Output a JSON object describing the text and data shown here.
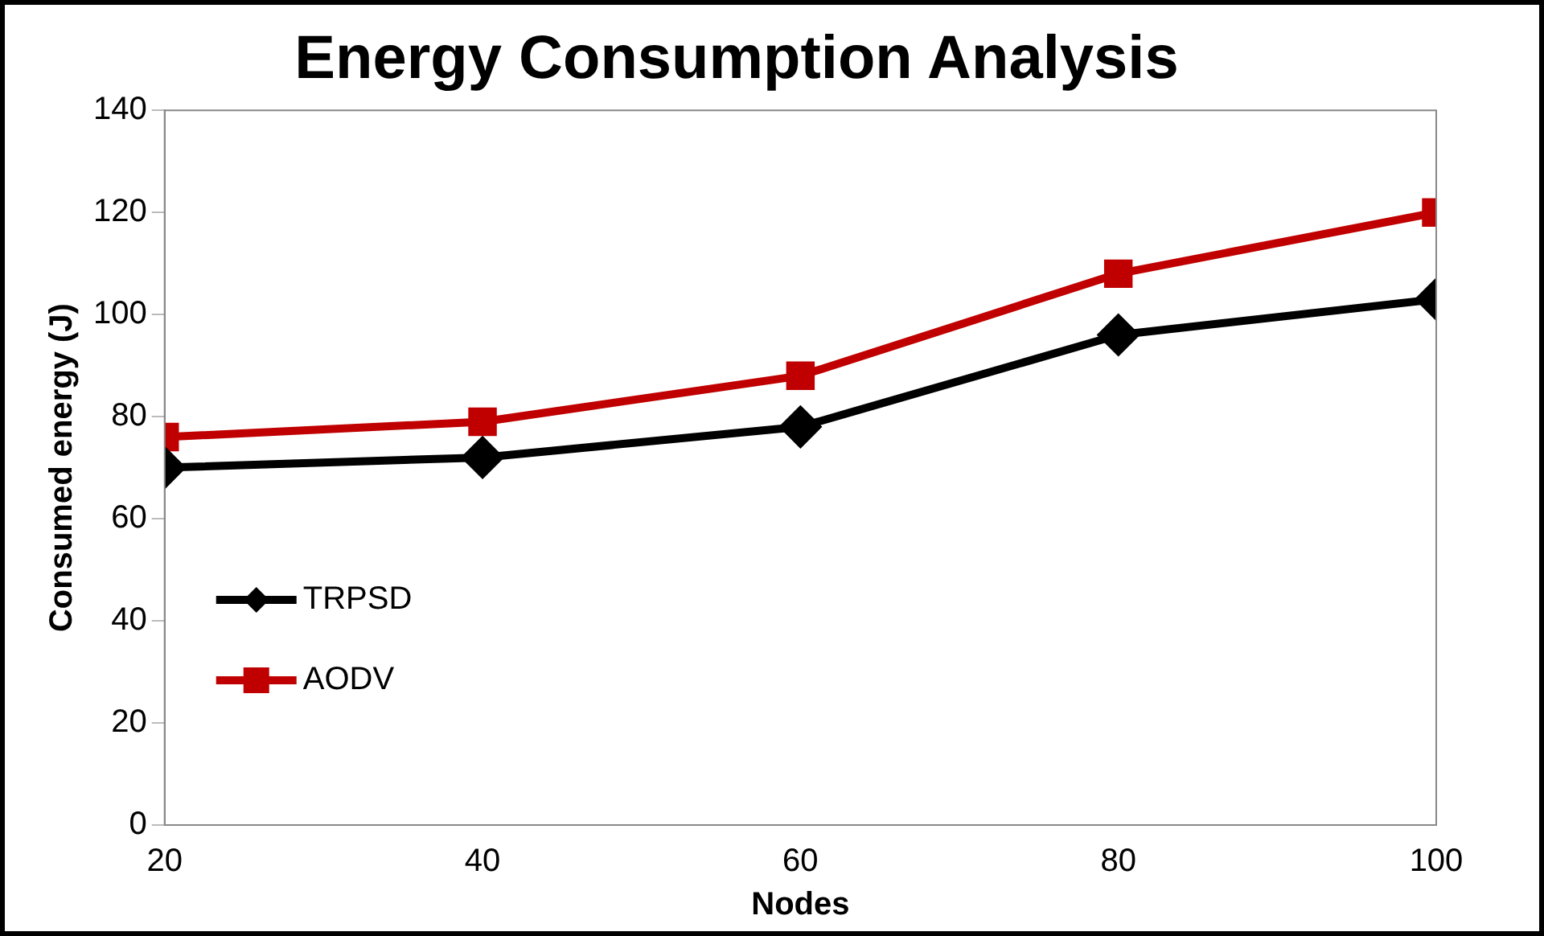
{
  "chart_data": {
    "type": "line",
    "title": "Energy Consumption Analysis",
    "xlabel": "Nodes",
    "ylabel": "Consumed energy (J)",
    "x": [
      20,
      40,
      60,
      80,
      100
    ],
    "series": [
      {
        "name": "TRPSD",
        "color": "#000000",
        "marker": "diamond",
        "values": [
          70,
          72,
          78,
          96,
          103
        ]
      },
      {
        "name": "AODV",
        "color": "#c00000",
        "marker": "square",
        "values": [
          76,
          79,
          88,
          108,
          120
        ]
      }
    ],
    "xlim": [
      20,
      100
    ],
    "xticks": [
      20,
      40,
      60,
      80,
      100
    ],
    "ylim": [
      0,
      140
    ],
    "yticks": [
      0,
      20,
      40,
      60,
      80,
      100,
      120,
      140
    ],
    "grid": false,
    "legend": "bottom left",
    "line_style": "solid"
  }
}
